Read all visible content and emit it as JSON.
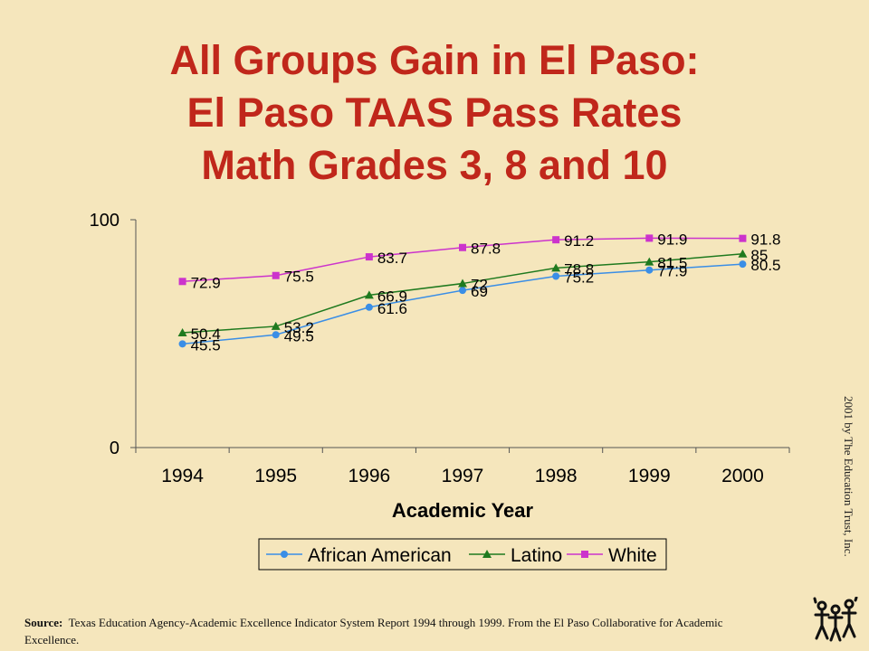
{
  "title_lines": [
    "All Groups Gain in El Paso:",
    "El Paso TAAS Pass Rates",
    "Math Grades 3, 8 and 10"
  ],
  "chart_data": {
    "type": "line",
    "title": "All Groups Gain in El Paso: El Paso TAAS Pass Rates Math Grades 3, 8 and 10",
    "xlabel": "Academic Year",
    "ylabel": "",
    "categories": [
      "1994",
      "1995",
      "1996",
      "1997",
      "1998",
      "1999",
      "2000"
    ],
    "ylim": [
      0,
      100
    ],
    "yticks": [
      "0",
      "100"
    ],
    "grid": false,
    "legend": "bottom",
    "series": [
      {
        "name": "African American",
        "values": [
          45.5,
          49.5,
          61.6,
          69,
          75.2,
          77.9,
          80.5
        ],
        "labels": [
          "45.5",
          "49.5",
          "61.6",
          "69",
          "75.2",
          "77.9",
          "80.5"
        ],
        "color": "#3a8ee6",
        "marker": "circle"
      },
      {
        "name": "Latino",
        "values": [
          50.4,
          53.2,
          66.9,
          72,
          78.8,
          81.5,
          85
        ],
        "labels": [
          "50.4",
          "53.2",
          "66.9",
          "72",
          "78.8",
          "81.5",
          "85"
        ],
        "color": "#1f7a1f",
        "marker": "triangle"
      },
      {
        "name": "White",
        "values": [
          72.9,
          75.5,
          83.7,
          87.8,
          91.2,
          91.9,
          91.8
        ],
        "labels": [
          "72.9",
          "75.5",
          "83.7",
          "87.8",
          "91.2",
          "91.9",
          "91.8"
        ],
        "color": "#cc33cc",
        "marker": "square"
      }
    ]
  },
  "source": {
    "label": "Source:",
    "text": "Texas Education Agency-Academic Excellence Indicator System Report 1994 through 1999. From the El Paso Collaborative for Academic Excellence."
  },
  "copyright": "2001 by The Education Trust, Inc.",
  "logo_icon": "people-figures-logo-icon"
}
